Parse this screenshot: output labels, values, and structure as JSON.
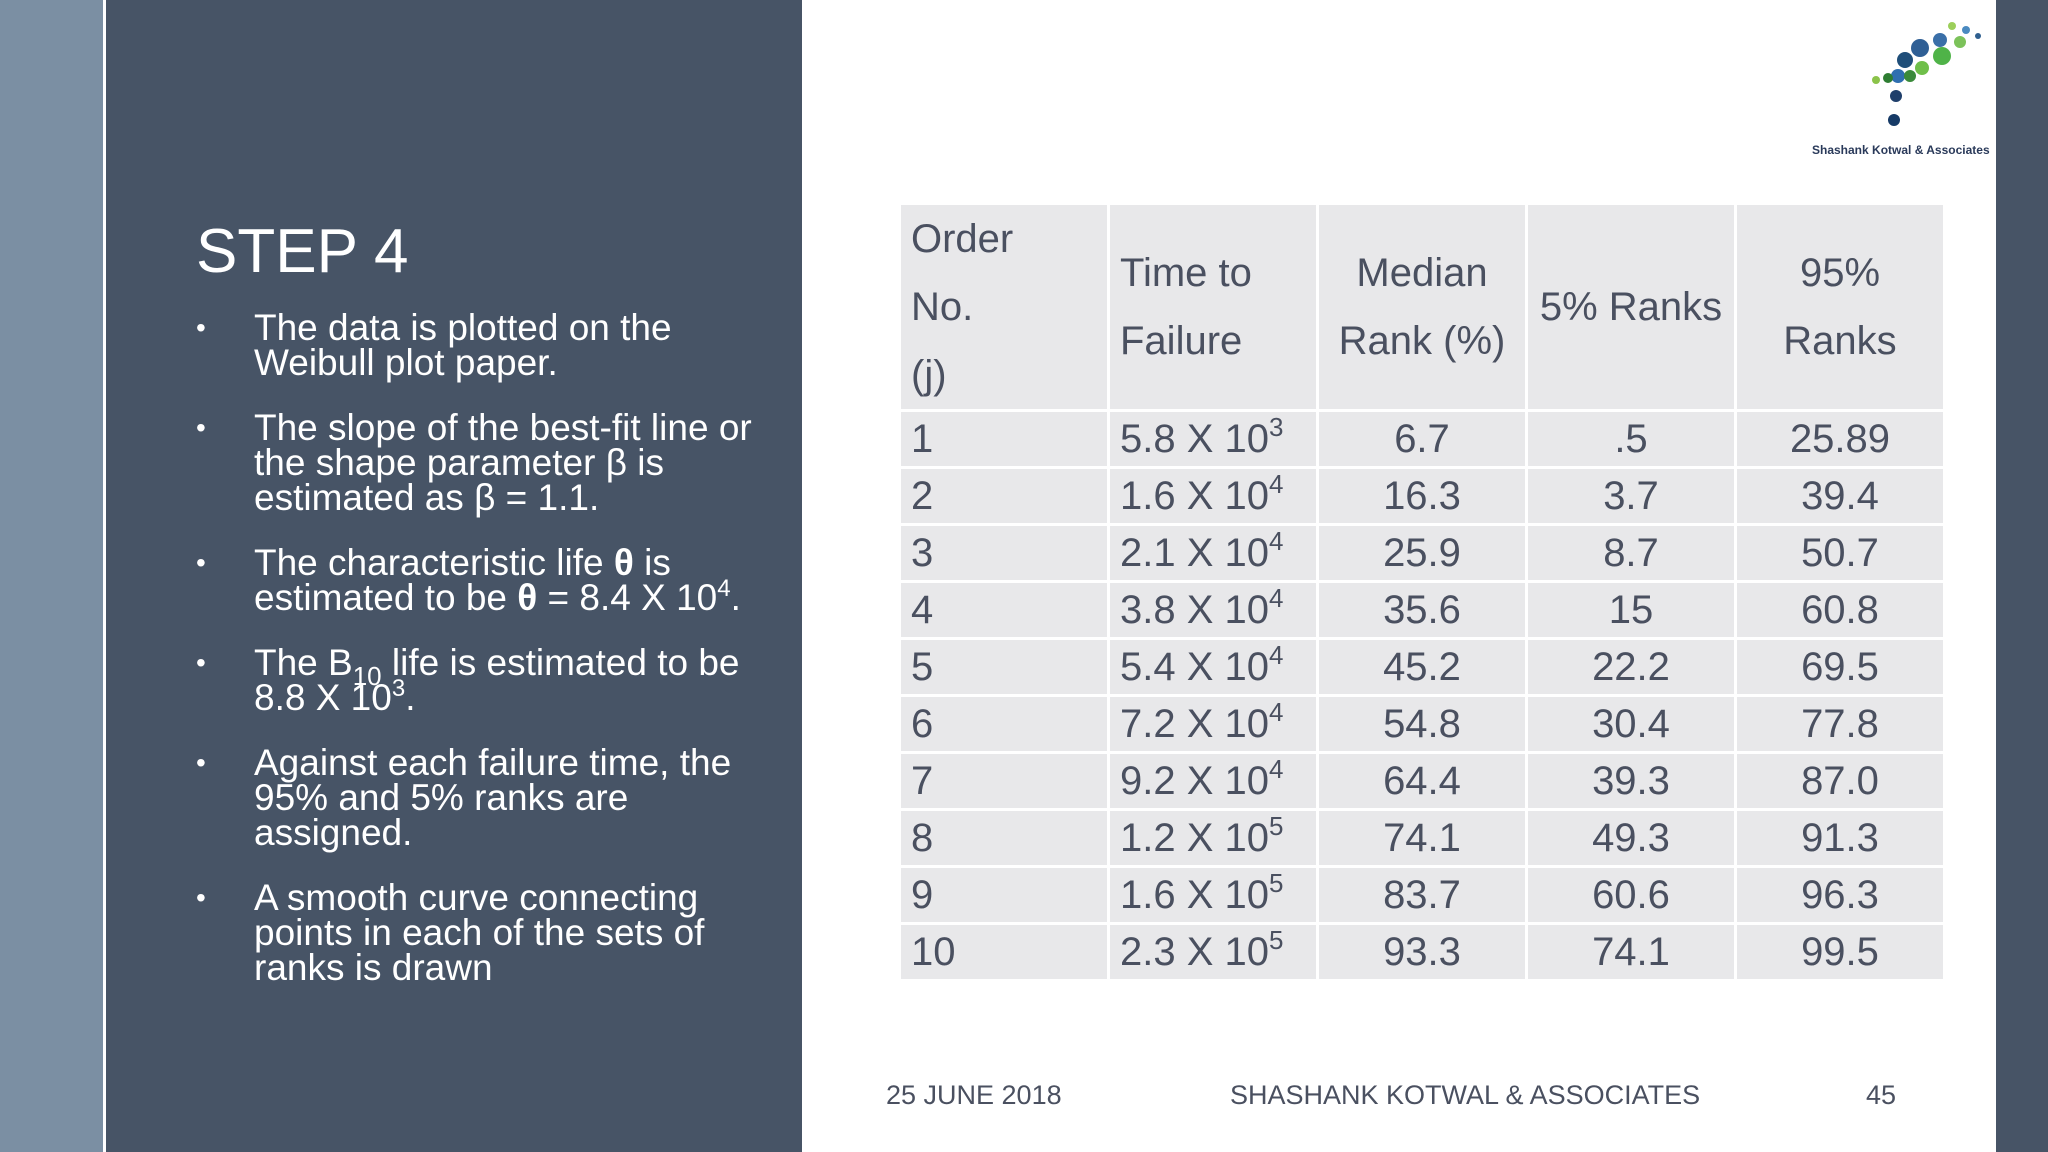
{
  "slide": {
    "title": "STEP 4",
    "bullets": [
      {
        "text": "The data is plotted on the Weibull plot paper."
      },
      {
        "pre": "The slope of the best-fit line or the shape parameter ",
        "sym1": "β",
        "mid": " is estimated as ",
        "sym2": "β",
        "post": " = 1.1."
      },
      {
        "pre": "The characteristic life ",
        "sym1": "θ",
        "mid": " is estimated to be ",
        "sym2": "θ",
        "post": " = 8.4 X 10",
        "sup": "4",
        "end": "."
      },
      {
        "pre": "The B",
        "sub": "10",
        "mid": " life is estimated to be 8.8 X 10",
        "sup": "3",
        "end": "."
      },
      {
        "text": "Against each failure time, the 95% and 5% ranks are assigned."
      },
      {
        "text": "A smooth curve connecting points in each of the sets of ranks is drawn"
      }
    ]
  },
  "table": {
    "headers": [
      {
        "line1a": "Order",
        "line1b": "No.",
        "line2": "(j)"
      },
      {
        "line1": "Time to",
        "line2": "Failure"
      },
      {
        "line1": "Median",
        "line2": "Rank (%)"
      },
      {
        "line1": "5% Ranks",
        "line2": ""
      },
      {
        "line1": "95%",
        "line2": "Ranks"
      }
    ],
    "rows": [
      {
        "order": "1",
        "time_base": "5.8 X 10",
        "time_exp": "3",
        "median": "6.7",
        "r5": ".5",
        "r95": "25.89"
      },
      {
        "order": "2",
        "time_base": "1.6 X 10",
        "time_exp": "4",
        "median": "16.3",
        "r5": "3.7",
        "r95": "39.4"
      },
      {
        "order": "3",
        "time_base": "2.1 X 10",
        "time_exp": "4",
        "median": "25.9",
        "r5": "8.7",
        "r95": "50.7"
      },
      {
        "order": "4",
        "time_base": "3.8 X 10",
        "time_exp": "4",
        "median": "35.6",
        "r5": "15",
        "r95": "60.8"
      },
      {
        "order": "5",
        "time_base": "5.4 X 10",
        "time_exp": "4",
        "median": "45.2",
        "r5": "22.2",
        "r95": "69.5"
      },
      {
        "order": "6",
        "time_base": "7.2 X 10",
        "time_exp": "4",
        "median": "54.8",
        "r5": "30.4",
        "r95": "77.8"
      },
      {
        "order": "7",
        "time_base": "9.2 X 10",
        "time_exp": "4",
        "median": "64.4",
        "r5": "39.3",
        "r95": "87.0"
      },
      {
        "order": "8",
        "time_base": "1.2 X 10",
        "time_exp": "5",
        "median": "74.1",
        "r5": "49.3",
        "r95": "91.3"
      },
      {
        "order": "9",
        "time_base": "1.6 X 10",
        "time_exp": "5",
        "median": "83.7",
        "r5": "60.6",
        "r95": "96.3"
      },
      {
        "order": "10",
        "time_base": "2.3 X 10",
        "time_exp": "5",
        "median": "93.3",
        "r5": "74.1",
        "r95": "99.5"
      }
    ]
  },
  "logo": {
    "text": "Shashank Kotwal & Associates"
  },
  "footer": {
    "date": "25 JUNE 2018",
    "company": "SHASHANK KOTWAL & ASSOCIATES",
    "page": "45"
  },
  "colors": {
    "panel": "#475466",
    "strip": "#7b8fa3",
    "table_cell": "#e8e8ea",
    "text_dark": "#4a5060"
  }
}
